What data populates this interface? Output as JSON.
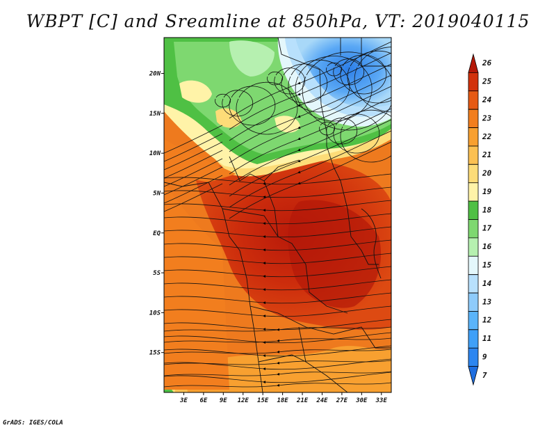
{
  "title": "WBPT [C] and Sreamline at 850hPa, VT: 2019040115",
  "credit": "GrADS: IGES/COLA",
  "map": {
    "lat_labels": [
      "20N",
      "15N",
      "10N",
      "5N",
      "EQ",
      "5S",
      "10S",
      "15S"
    ],
    "lat_values": [
      20,
      15,
      10,
      5,
      0,
      -5,
      -10,
      -15
    ],
    "lon_labels": [
      "3E",
      "6E",
      "9E",
      "12E",
      "15E",
      "18E",
      "21E",
      "24E",
      "27E",
      "30E",
      "33E"
    ],
    "lon_values": [
      3,
      6,
      9,
      12,
      15,
      18,
      21,
      24,
      27,
      30,
      33
    ],
    "lat_range": [
      -20,
      24.5
    ],
    "lon_range": [
      0,
      34.5
    ]
  },
  "colorbar": {
    "labels": [
      "7",
      "9",
      "11",
      "12",
      "13",
      "14",
      "15",
      "16",
      "17",
      "18",
      "19",
      "20",
      "21",
      "22",
      "23",
      "24",
      "25",
      "26"
    ],
    "colors": [
      "#1e6ee0",
      "#2d86f0",
      "#3fa0f8",
      "#5ab4fa",
      "#8ecbfb",
      "#b8e0fc",
      "#e4f7fb",
      "#b6f0b0",
      "#7ed870",
      "#4fc044",
      "#fff3a8",
      "#fddc78",
      "#fbc052",
      "#f8a030",
      "#f27e1e",
      "#e65a14",
      "#d2320c",
      "#b41808"
    ]
  }
}
